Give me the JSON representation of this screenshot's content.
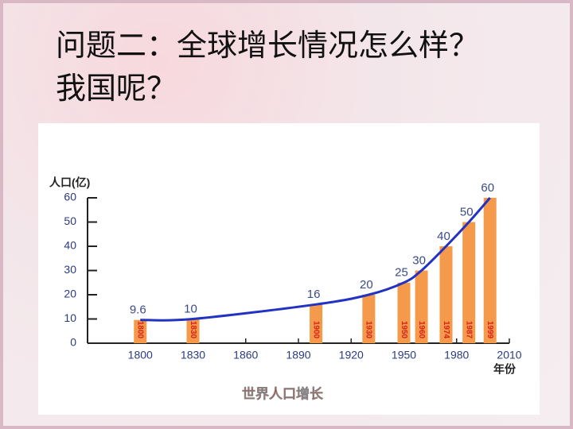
{
  "header": {
    "lines": [
      "问题二：全球增长情况怎么样？",
      "我国呢？"
    ]
  },
  "chart_data": {
    "type": "bar",
    "title": "世界人口增长",
    "ylabel": "人口(亿)",
    "xlabel": "年份",
    "x": [
      1800,
      1830,
      1900,
      1930,
      1950,
      1960,
      1974,
      1987,
      1999
    ],
    "values": [
      9.6,
      10,
      16,
      20,
      25,
      30,
      40,
      50,
      60
    ],
    "color": "#f59a4a",
    "trend_color": "#2233c4",
    "year_label_color": "#d8201c",
    "xlim": [
      1770,
      2010
    ],
    "xticks": [
      1800,
      1830,
      1860,
      1890,
      1920,
      1950,
      1980,
      2010
    ],
    "ylim": [
      0,
      60
    ],
    "yticks": [
      0,
      10,
      20,
      30,
      40,
      50,
      60
    ]
  }
}
